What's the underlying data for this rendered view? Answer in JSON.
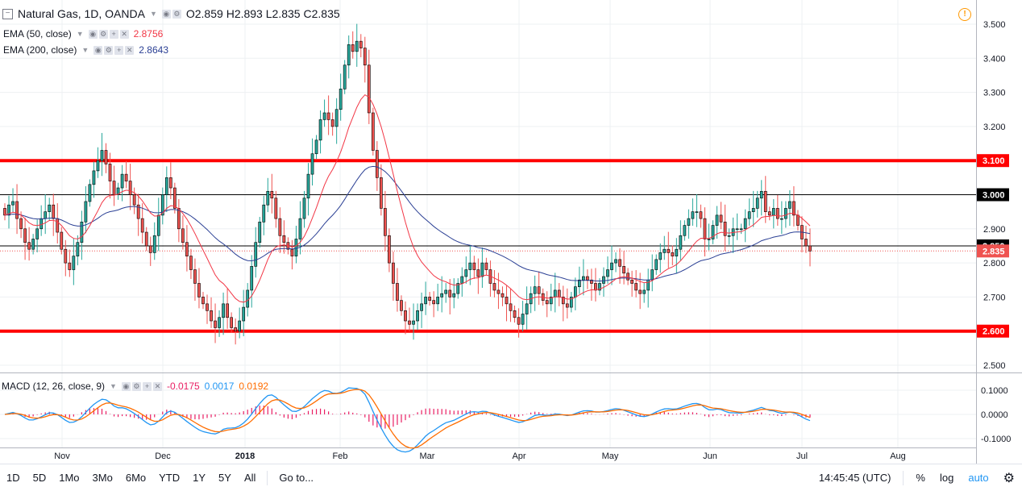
{
  "header": {
    "symbol_title": "Natural Gas, 1D, OANDA",
    "open_label": "O",
    "open_value": "2.859",
    "high_label": "H",
    "high_value": "2.893",
    "low_label": "L",
    "low_value": "2.835",
    "close_label": "C",
    "close_value": "2.835",
    "collapse_icon": "minus-box-icon",
    "warning_icon": "exclamation-circle-icon"
  },
  "indicators": {
    "ema50": {
      "label": "EMA (50, close)",
      "value": "2.8756",
      "color": "#f23645"
    },
    "ema200": {
      "label": "EMA (200, close)",
      "value": "2.8643",
      "color": "#2a3f94"
    },
    "macd": {
      "label": "MACD (12, 26, close, 9)",
      "hist_value": "-0.0175",
      "macd_value": "0.0017",
      "signal_value": "0.0192",
      "hist_color": "#e91e63",
      "macd_color": "#2196f3",
      "signal_color": "#ff6d00"
    }
  },
  "price_axis": {
    "ticks": [
      "3.500",
      "3.400",
      "3.300",
      "3.200",
      "2.900",
      "2.800",
      "2.700",
      "2.500"
    ],
    "badges": [
      {
        "text": "3.100",
        "bg": "#ff0000",
        "fg": "#ffffff"
      },
      {
        "text": "3.000",
        "bg": "#000000",
        "fg": "#ffffff"
      },
      {
        "text": "2.850",
        "bg": "#000000",
        "fg": "#ffffff"
      },
      {
        "text": "2.835",
        "bg": "#ef5350",
        "fg": "#ffffff"
      },
      {
        "text": "2.600",
        "bg": "#ff0000",
        "fg": "#ffffff"
      }
    ]
  },
  "macd_axis": {
    "ticks": [
      "0.1000",
      "0.0000",
      "-0.1000"
    ]
  },
  "time_axis": {
    "labels": [
      "Nov",
      "Dec",
      "2018",
      "Feb",
      "Mar",
      "Apr",
      "May",
      "Jun",
      "Jul",
      "Aug"
    ]
  },
  "bottom_bar": {
    "ranges": [
      "1D",
      "5D",
      "1Mo",
      "3Mo",
      "6Mo",
      "YTD",
      "1Y",
      "5Y",
      "All"
    ],
    "goto": "Go to...",
    "time": "14:45:45 (UTC)",
    "percent": "%",
    "log": "log",
    "auto": "auto",
    "settings_icon": "gear-icon"
  },
  "chart_data": {
    "type": "candlestick",
    "series": "Natural Gas daily candles, Oct 2017 – Jul 2018 (estimated)",
    "ylim": [
      2.47,
      3.56
    ],
    "horizontal_levels": [
      {
        "price": 3.1,
        "color": "#ff0000",
        "width": 4
      },
      {
        "price": 3.0,
        "color": "#000000",
        "width": 1
      },
      {
        "price": 2.85,
        "color": "#000000",
        "width": 1
      },
      {
        "price": 2.6,
        "color": "#ff0000",
        "width": 4
      }
    ],
    "last_price_line": {
      "price": 2.835,
      "color": "#ef5350"
    },
    "up_color": "#26a69a",
    "down_color": "#ef5350",
    "closes": [
      2.94,
      2.97,
      2.98,
      2.93,
      2.9,
      2.86,
      2.84,
      2.87,
      2.9,
      2.93,
      2.95,
      2.97,
      2.93,
      2.89,
      2.84,
      2.8,
      2.78,
      2.82,
      2.86,
      2.92,
      2.98,
      3.03,
      3.07,
      3.1,
      3.13,
      3.09,
      3.04,
      3.0,
      3.02,
      3.06,
      3.04,
      3.0,
      2.97,
      2.93,
      2.89,
      2.85,
      2.83,
      2.88,
      2.94,
      3.0,
      3.05,
      3.02,
      2.96,
      2.9,
      2.86,
      2.82,
      2.78,
      2.74,
      2.7,
      2.68,
      2.66,
      2.63,
      2.61,
      2.64,
      2.68,
      2.64,
      2.61,
      2.6,
      2.63,
      2.67,
      2.72,
      2.79,
      2.86,
      2.92,
      2.97,
      3.01,
      2.99,
      2.93,
      2.88,
      2.86,
      2.84,
      2.82,
      2.87,
      2.93,
      2.99,
      3.06,
      3.12,
      3.16,
      3.22,
      3.24,
      3.22,
      3.2,
      3.25,
      3.31,
      3.38,
      3.44,
      3.42,
      3.45,
      3.43,
      3.38,
      3.24,
      3.13,
      3.05,
      2.96,
      2.88,
      2.8,
      2.74,
      2.69,
      2.66,
      2.63,
      2.62,
      2.63,
      2.66,
      2.68,
      2.7,
      2.69,
      2.68,
      2.7,
      2.71,
      2.72,
      2.7,
      2.71,
      2.74,
      2.76,
      2.78,
      2.8,
      2.78,
      2.76,
      2.8,
      2.78,
      2.74,
      2.72,
      2.71,
      2.7,
      2.68,
      2.66,
      2.64,
      2.62,
      2.65,
      2.68,
      2.71,
      2.73,
      2.71,
      2.69,
      2.68,
      2.7,
      2.72,
      2.7,
      2.68,
      2.67,
      2.7,
      2.73,
      2.75,
      2.76,
      2.75,
      2.74,
      2.72,
      2.74,
      2.76,
      2.78,
      2.8,
      2.81,
      2.79,
      2.77,
      2.75,
      2.74,
      2.72,
      2.71,
      2.72,
      2.75,
      2.78,
      2.81,
      2.83,
      2.84,
      2.83,
      2.82,
      2.84,
      2.88,
      2.91,
      2.93,
      2.95,
      2.95,
      2.93,
      2.87,
      2.87,
      2.91,
      2.94,
      2.92,
      2.88,
      2.88,
      2.9,
      2.9,
      2.9,
      2.93,
      2.95,
      2.96,
      2.99,
      3.01,
      2.95,
      2.94,
      2.96,
      2.93,
      2.93,
      2.96,
      2.98,
      2.94,
      2.91,
      2.87,
      2.85,
      2.835
    ]
  }
}
